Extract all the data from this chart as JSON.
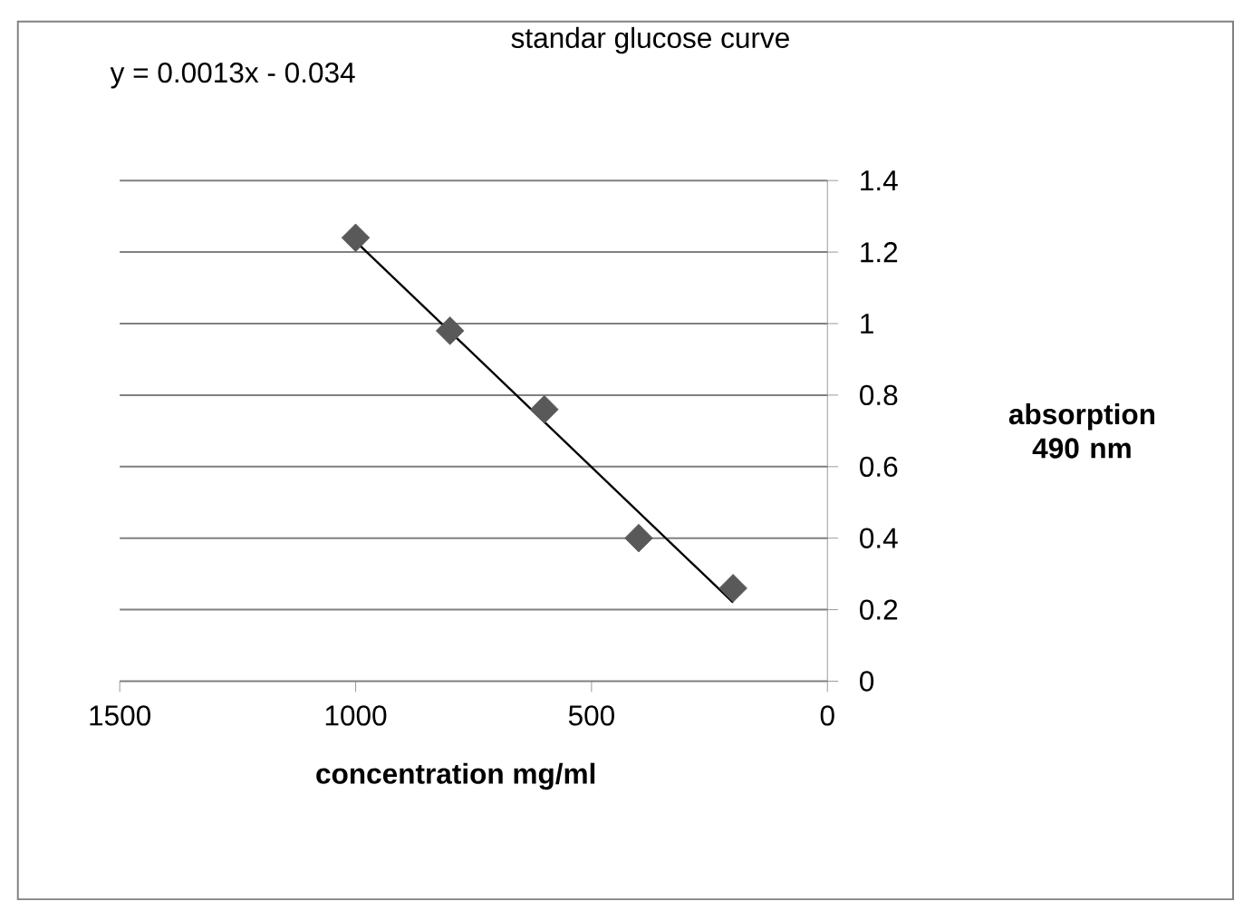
{
  "chart_data": {
    "type": "scatter",
    "title": "standar glucose curve",
    "xlabel": "concentration mg/ml",
    "ylabel": "absorption 490 nm",
    "annotations": [
      "y = 0.0013x - 0.034"
    ],
    "series": [
      {
        "color": "#595959",
        "marker": "diamond",
        "x": [
          1000,
          800,
          600,
          400,
          200
        ],
        "values": [
          1.24,
          0.98,
          0.76,
          0.4,
          0.26
        ]
      },
      {
        "type": "line",
        "color": "#000000",
        "marker": "none",
        "line_style": "solid",
        "x": [
          1000,
          200
        ],
        "values": [
          1.23,
          0.22
        ]
      }
    ],
    "xlim": [
      1500,
      0
    ],
    "xticks": [
      1500,
      1000,
      500,
      0
    ],
    "ylim": [
      0,
      1.4
    ],
    "yticks": [
      0,
      0.2,
      0.4,
      0.6,
      0.8,
      1,
      1.2,
      1.4
    ],
    "grid": "y"
  }
}
